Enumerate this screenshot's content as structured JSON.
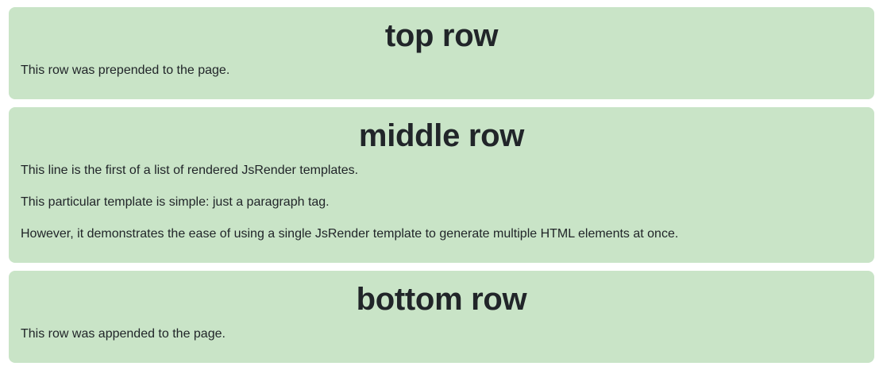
{
  "top_row": {
    "title": "top row",
    "text": "This row was prepended to the page."
  },
  "middle_row": {
    "title": "middle row",
    "paragraphs": [
      "This line is the first of a list of rendered JsRender templates.",
      "This particular template is simple: just a paragraph tag.",
      "However, it demonstrates the ease of using a single JsRender template to generate multiple HTML elements at once."
    ]
  },
  "bottom_row": {
    "title": "bottom row",
    "text": "This row was appended to the page."
  },
  "colors": {
    "row_background": "#c9e4c7",
    "text": "#212529",
    "page_background": "#ffffff"
  }
}
